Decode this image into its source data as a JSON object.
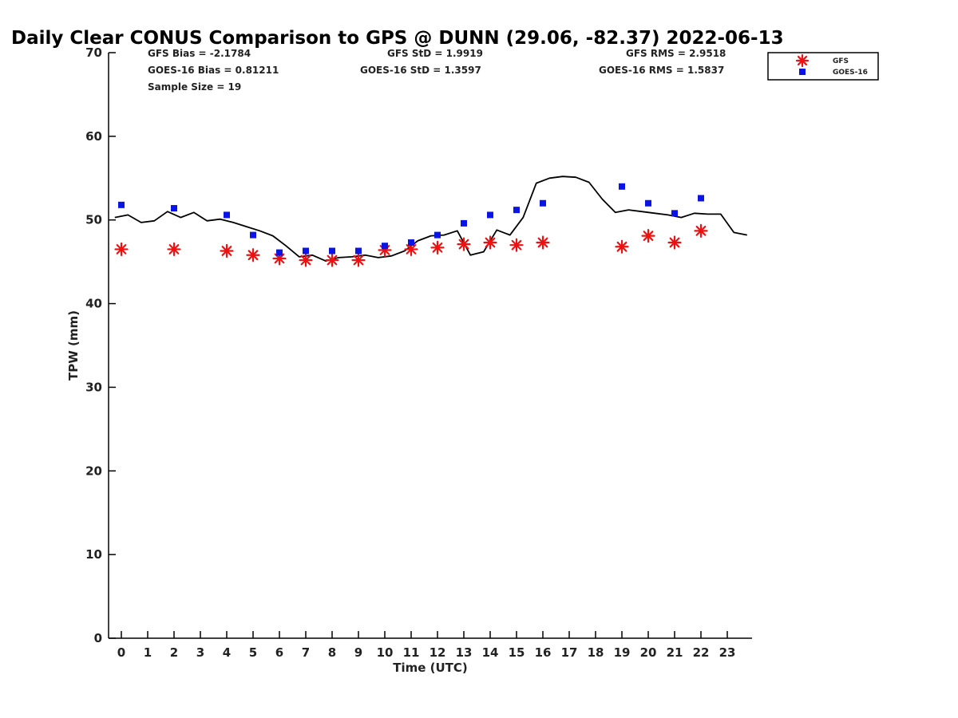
{
  "chart_data": {
    "type": "scatter",
    "title": "Daily Clear CONUS Comparison to GPS @ DUNN (29.06, -82.37) 2022-06-13",
    "xlabel": "Time (UTC)",
    "ylabel": "TPW (mm)",
    "xlim": [
      -0.5,
      23.75
    ],
    "ylim": [
      0,
      70
    ],
    "x_ticks": [
      0,
      1,
      2,
      3,
      4,
      5,
      6,
      7,
      8,
      9,
      10,
      11,
      12,
      13,
      14,
      15,
      16,
      17,
      18,
      19,
      20,
      21,
      22,
      23
    ],
    "y_ticks": [
      0,
      10,
      20,
      30,
      40,
      50,
      60,
      70
    ],
    "grid": false,
    "legend_position": "top-right",
    "stats": {
      "gfs_bias": "GFS Bias = -2.1784",
      "gfs_std": "GFS StD = 1.9919",
      "gfs_rms": "GFS RMS = 2.9518",
      "goes_bias": "GOES-16 Bias = 0.81211",
      "goes_std": "GOES-16 StD = 1.3597",
      "goes_rms": "GOES-16 RMS = 1.5837",
      "sample_size": "Sample Size = 19"
    },
    "series": [
      {
        "name": "GFS",
        "marker": "asterisk",
        "color": "#ee1111",
        "x": [
          0,
          2,
          4,
          5,
          6,
          7,
          8,
          9,
          10,
          11,
          12,
          13,
          14,
          15,
          16,
          19,
          20,
          21,
          22
        ],
        "y": [
          46.5,
          46.5,
          46.3,
          45.8,
          45.4,
          45.2,
          45.2,
          45.2,
          46.4,
          46.5,
          46.7,
          47.1,
          47.3,
          47.0,
          47.3,
          46.8,
          48.1,
          47.3,
          48.7
        ]
      },
      {
        "name": "GOES-16",
        "marker": "square",
        "color": "#0a14e6",
        "x": [
          0,
          2,
          4,
          5,
          6,
          7,
          8,
          9,
          10,
          11,
          12,
          13,
          14,
          15,
          16,
          19,
          20,
          21,
          22
        ],
        "y": [
          51.8,
          51.4,
          50.6,
          48.2,
          46.1,
          46.3,
          46.3,
          46.3,
          46.9,
          47.3,
          48.2,
          49.6,
          50.6,
          51.2,
          52.0,
          54.0,
          52.0,
          50.8,
          52.6
        ]
      },
      {
        "marker": "line",
        "color": "#000000",
        "x": [
          -0.25,
          0.25,
          0.75,
          1.25,
          1.75,
          2.25,
          2.75,
          3.25,
          3.75,
          4.25,
          4.75,
          5.25,
          5.75,
          6.25,
          6.75,
          7.25,
          7.75,
          8.25,
          8.75,
          9.25,
          9.75,
          10.25,
          10.75,
          11.25,
          11.75,
          12.25,
          12.75,
          13.25,
          13.75,
          14.25,
          14.75,
          15.25,
          15.75,
          16.25,
          16.75,
          17.25,
          17.75,
          18.25,
          18.75,
          19.25,
          19.75,
          20.25,
          20.75,
          21.25,
          21.75,
          22.25,
          22.75,
          23.25,
          23.75
        ],
        "y": [
          50.3,
          50.6,
          49.7,
          49.9,
          51.0,
          50.3,
          50.9,
          49.9,
          50.1,
          49.7,
          49.2,
          48.7,
          48.1,
          46.9,
          45.6,
          45.8,
          45.1,
          45.5,
          45.6,
          45.8,
          45.5,
          45.7,
          46.3,
          47.5,
          48.1,
          48.2,
          48.7,
          45.8,
          46.2,
          48.8,
          48.2,
          50.3,
          54.4,
          55.0,
          55.2,
          55.1,
          54.5,
          52.5,
          50.9,
          51.2,
          51.0,
          50.8,
          50.6,
          50.3,
          50.8,
          50.7,
          50.7,
          48.5,
          48.2
        ]
      }
    ]
  }
}
